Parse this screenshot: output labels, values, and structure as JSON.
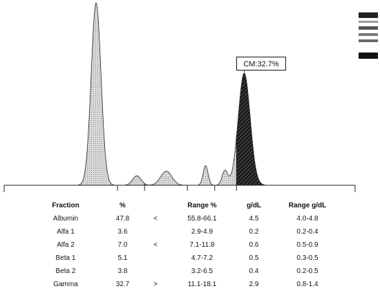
{
  "chart_data": {
    "type": "area",
    "title": "",
    "xlabel": "",
    "ylabel": "",
    "annotation": "CM:32.7%",
    "peaks": [
      {
        "fraction": "Albumin",
        "x": 0.262,
        "height": 1.0,
        "width": 0.014
      },
      {
        "fraction": "Alfa 1",
        "x": 0.378,
        "height": 0.052,
        "width": 0.012
      },
      {
        "fraction": "Alfa 2",
        "x": 0.462,
        "height": 0.077,
        "width": 0.016
      },
      {
        "fraction": "Beta 1",
        "x": 0.574,
        "height": 0.107,
        "width": 0.007
      },
      {
        "fraction": "Beta 2",
        "x": 0.629,
        "height": 0.08,
        "width": 0.008
      },
      {
        "fraction": "Gamma",
        "x": 0.684,
        "height": 0.614,
        "width": 0.017
      }
    ],
    "dividers": [
      0.323,
      0.4,
      0.522,
      0.6,
      0.662
    ],
    "colors": {
      "fill": "#c8c8c8",
      "gamma_fill": "#1a1a1a",
      "line": "#222222"
    }
  },
  "table": {
    "headers": [
      "Fraction",
      "%",
      "Range %",
      "g/dL",
      "Range g/dL"
    ],
    "rows": [
      {
        "name": "Albumin",
        "pct": "47.8",
        "flag": "<",
        "range": "55.8-66.1",
        "gdl": "4.5",
        "grange": "4.0-4.8"
      },
      {
        "name": "Alfa 1",
        "pct": "3.6",
        "flag": "",
        "range": "2.9-4.9",
        "gdl": "0.2",
        "grange": "0.2-0.4"
      },
      {
        "name": "Alfa 2",
        "pct": "7.0",
        "flag": "<",
        "range": "7.1-11.8",
        "gdl": "0.6",
        "grange": "0.5-0.9"
      },
      {
        "name": "Beta 1",
        "pct": "5.1",
        "flag": "",
        "range": "4.7-7.2",
        "gdl": "0.5",
        "grange": "0.3-0.5"
      },
      {
        "name": "Beta 2",
        "pct": "3.8",
        "flag": "",
        "range": "3.2-6.5",
        "gdl": "0.4",
        "grange": "0.2-0.5"
      },
      {
        "name": "Gamma",
        "pct": "32.7",
        "flag": ">",
        "range": "11.1-18.1",
        "gdl": "2.9",
        "grange": "0.8-1.4"
      }
    ]
  }
}
